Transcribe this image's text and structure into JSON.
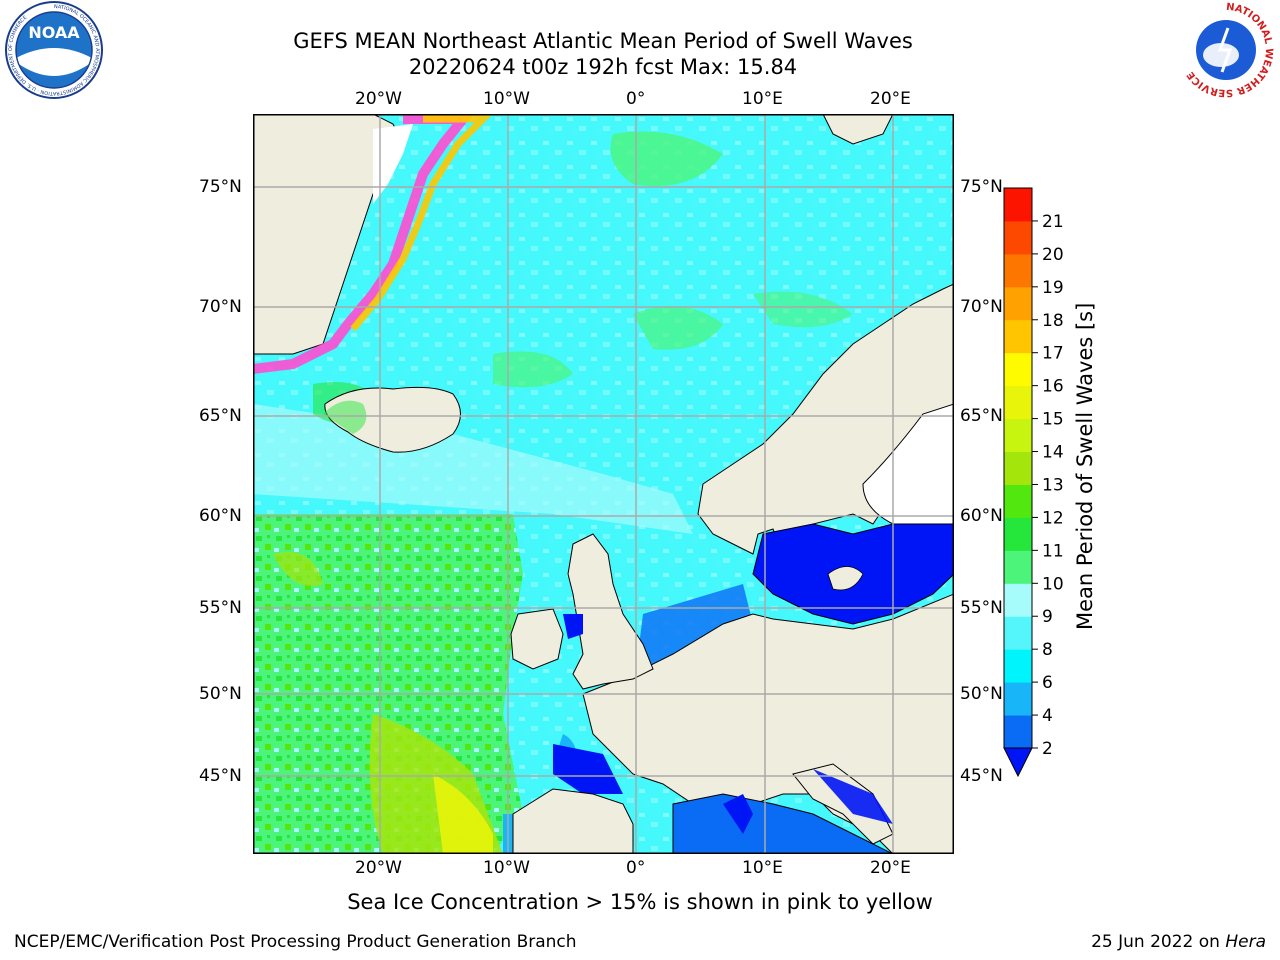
{
  "header": {
    "title_line1": "GEFS MEAN Northeast Atlantic Mean Period of Swell Waves",
    "title_line2": "20220624 t00z 192h fcst   Max: 15.84",
    "logo_left": "NOAA",
    "logo_left_ring": "NATIONAL OCEANIC AND ATMOSPHERIC ADMINISTRATION · U.S. DEPARTMENT OF COMMERCE",
    "logo_right_ring": "NATIONAL WEATHER SERVICE"
  },
  "map": {
    "lon_labels": [
      "20°W",
      "10°W",
      "0°",
      "10°E",
      "20°E"
    ],
    "lat_labels": [
      "75°N",
      "70°N",
      "65°N",
      "60°N",
      "55°N",
      "50°N",
      "45°N"
    ],
    "land_color": "#efedde",
    "ocean_base_color": "#45f8fc"
  },
  "colorbar": {
    "label": "Mean Period of Swell Waves [s]",
    "ticks": [
      "2",
      "4",
      "6",
      "8",
      "9",
      "10",
      "11",
      "12",
      "13",
      "14",
      "15",
      "16",
      "17",
      "18",
      "19",
      "20",
      "21"
    ],
    "colors": [
      "#0a6cf5",
      "#18b6f8",
      "#00f4fb",
      "#54f6fb",
      "#a6fbfb",
      "#4cf57a",
      "#25e73b",
      "#52e70f",
      "#a4e50c",
      "#c8f50f",
      "#e8f40a",
      "#fefb00",
      "#ffc600",
      "#ffa100",
      "#fd7600",
      "#fd4800",
      "#fc1300"
    ],
    "extend_color": "#0015f5"
  },
  "footer": {
    "subtitle": "Sea Ice Concentration > 15% is shown in pink to yellow",
    "left": "NCEP/EMC/Verification Post Processing Product Generation Branch",
    "right_date": "25 Jun 2022 on ",
    "right_host": "Hera"
  }
}
